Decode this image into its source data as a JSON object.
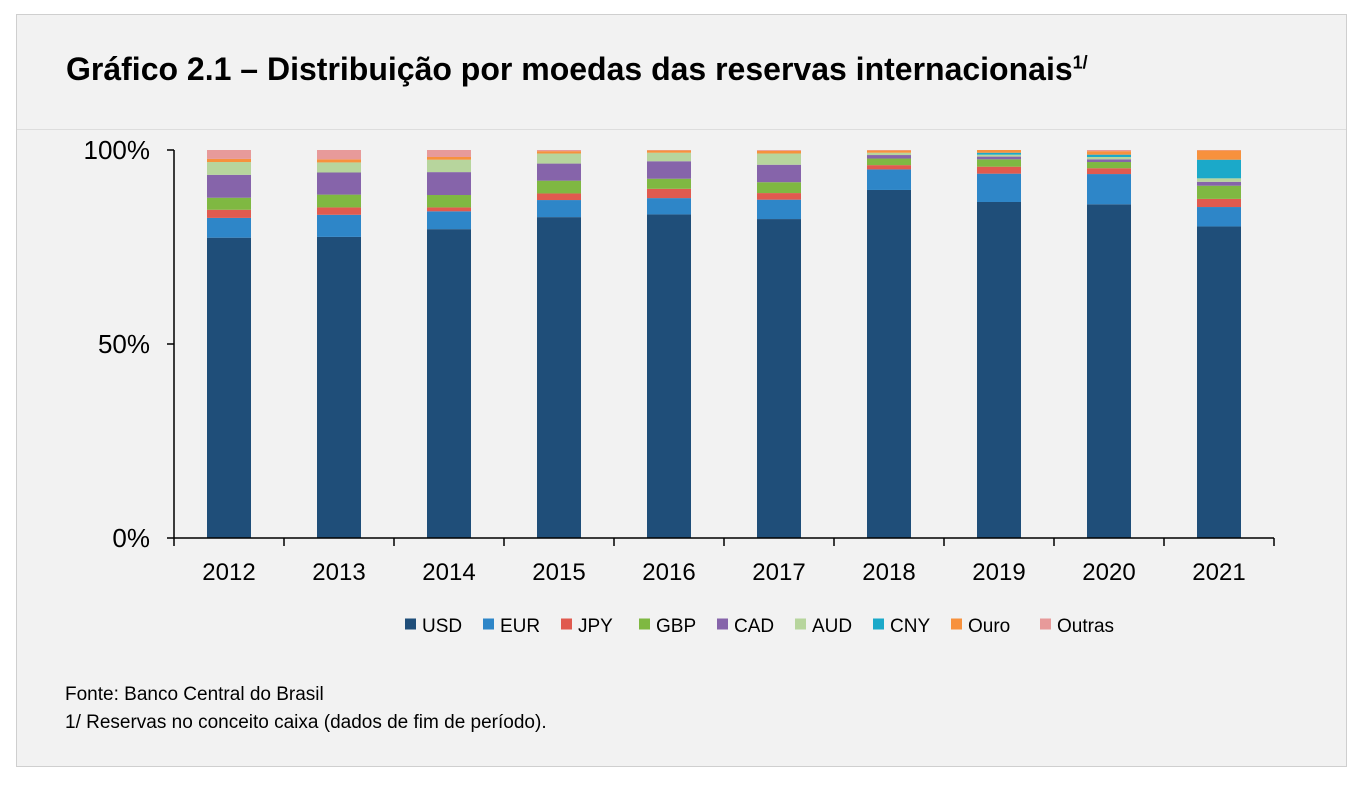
{
  "header": {
    "title": "Gráfico 2.1 – Distribuição por moedas das reservas internacionais",
    "title_superscript": "1/"
  },
  "footer": {
    "source": "Fonte: Banco Central do Brasil",
    "note": "1/ Reservas no conceito caixa (dados de fim de período)."
  },
  "chart_data": {
    "type": "bar",
    "stacked": true,
    "title": "Gráfico 2.1 – Distribuição por moedas das reservas internacionais",
    "xlabel": "",
    "ylabel": "",
    "ylim": [
      0,
      100
    ],
    "yticks": [
      "0%",
      "50%",
      "100%"
    ],
    "ytick_values": [
      0,
      50,
      100
    ],
    "grid": false,
    "legend_position": "bottom",
    "categories": [
      "2012",
      "2013",
      "2014",
      "2015",
      "2016",
      "2017",
      "2018",
      "2019",
      "2020",
      "2021"
    ],
    "series": [
      {
        "name": "USD",
        "color": "#1f4e79",
        "values": [
          77.4,
          77.6,
          79.6,
          82.7,
          83.4,
          82.2,
          89.7,
          86.6,
          86.0,
          80.3
        ]
      },
      {
        "name": "EUR",
        "color": "#2e86c8",
        "values": [
          5.1,
          5.7,
          4.6,
          4.4,
          4.2,
          5.0,
          5.3,
          7.3,
          7.8,
          5.0
        ]
      },
      {
        "name": "JPY",
        "color": "#e05a4f",
        "values": [
          2.1,
          1.9,
          1.0,
          1.7,
          2.4,
          1.7,
          1.1,
          1.8,
          1.5,
          2.1
        ]
      },
      {
        "name": "GBP",
        "color": "#7fb842",
        "values": [
          3.1,
          3.3,
          3.2,
          3.3,
          2.6,
          2.8,
          1.7,
          1.9,
          1.6,
          3.4
        ]
      },
      {
        "name": "CAD",
        "color": "#8664aa",
        "values": [
          5.9,
          5.7,
          5.9,
          4.4,
          4.5,
          4.5,
          0.9,
          0.7,
          0.7,
          1.0
        ]
      },
      {
        "name": "AUD",
        "color": "#b7d59d",
        "values": [
          3.3,
          2.6,
          3.2,
          2.6,
          2.2,
          2.9,
          0.6,
          0.5,
          0.6,
          0.9
        ]
      },
      {
        "name": "CNY",
        "color": "#1ba9c9",
        "values": [
          0.0,
          0.0,
          0.0,
          0.0,
          0.0,
          0.0,
          0.0,
          0.5,
          0.6,
          4.8
        ]
      },
      {
        "name": "Ouro",
        "color": "#f7913d",
        "values": [
          0.8,
          0.8,
          0.7,
          0.6,
          0.6,
          0.7,
          0.6,
          0.7,
          0.9,
          2.4
        ]
      },
      {
        "name": "Outras",
        "color": "#e79a9a",
        "values": [
          2.3,
          2.4,
          1.8,
          0.3,
          0.1,
          0.2,
          0.1,
          0.0,
          0.3,
          0.1
        ]
      }
    ]
  }
}
